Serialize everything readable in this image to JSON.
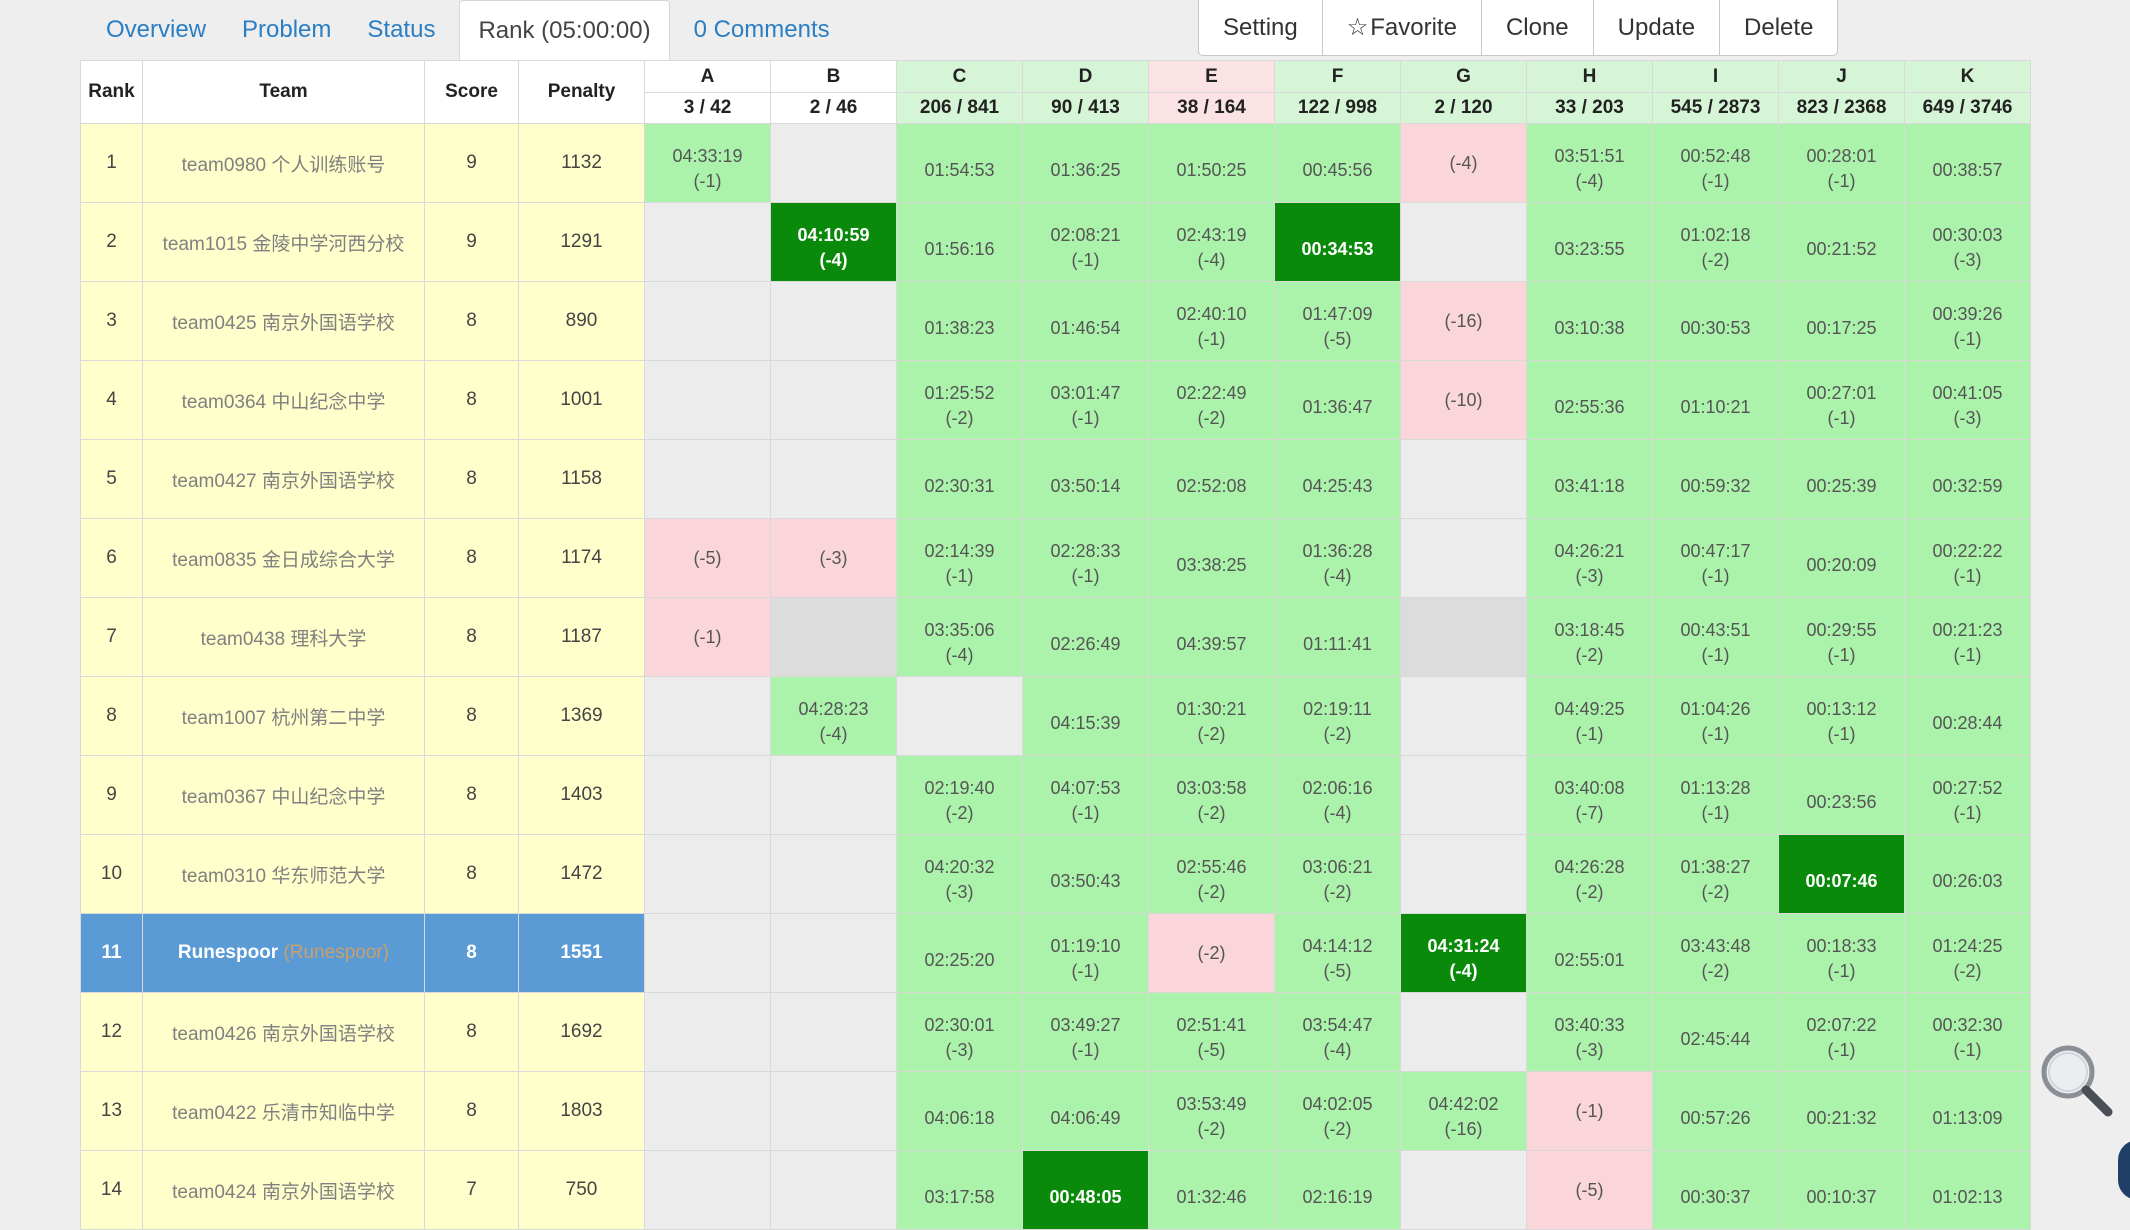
{
  "nav": {
    "overview": "Overview",
    "problem": "Problem",
    "status": "Status",
    "rank": "Rank (05:00:00)",
    "comments": "0 Comments"
  },
  "actions": {
    "setting": "Setting",
    "favorite_icon": "☆",
    "favorite": "Favorite",
    "clone": "Clone",
    "update": "Update",
    "delete": "Delete"
  },
  "table": {
    "headers": {
      "rank": "Rank",
      "team": "Team",
      "score": "Score",
      "penalty": "Penalty"
    },
    "problems": [
      {
        "label": "A",
        "stat": "3 / 42",
        "status": "none"
      },
      {
        "label": "B",
        "stat": "2 / 46",
        "status": "none"
      },
      {
        "label": "C",
        "stat": "206 / 841",
        "status": "solved"
      },
      {
        "label": "D",
        "stat": "90 / 413",
        "status": "solved"
      },
      {
        "label": "E",
        "stat": "38 / 164",
        "status": "failed"
      },
      {
        "label": "F",
        "stat": "122 / 998",
        "status": "solved"
      },
      {
        "label": "G",
        "stat": "2 / 120",
        "status": "solved"
      },
      {
        "label": "H",
        "stat": "33 / 203",
        "status": "solved"
      },
      {
        "label": "I",
        "stat": "545 / 2873",
        "status": "solved"
      },
      {
        "label": "J",
        "stat": "823 / 2368",
        "status": "solved"
      },
      {
        "label": "K",
        "stat": "649 / 3746",
        "status": "solved"
      }
    ],
    "rows": [
      {
        "rank": "1",
        "team": "team0980 个人训练账号",
        "nick": "",
        "score": "9",
        "penalty": "1132",
        "me": false,
        "cells": [
          {
            "s": "ac",
            "t": "04:33:19",
            "n": "(-1)"
          },
          {
            "s": "empty",
            "t": "",
            "n": ""
          },
          {
            "s": "ac",
            "t": "01:54:53",
            "n": ""
          },
          {
            "s": "ac",
            "t": "01:36:25",
            "n": ""
          },
          {
            "s": "ac",
            "t": "01:50:25",
            "n": ""
          },
          {
            "s": "ac",
            "t": "00:45:56",
            "n": ""
          },
          {
            "s": "wa",
            "t": "(-4)",
            "n": ""
          },
          {
            "s": "ac",
            "t": "03:51:51",
            "n": "(-4)"
          },
          {
            "s": "ac",
            "t": "00:52:48",
            "n": "(-1)"
          },
          {
            "s": "ac",
            "t": "00:28:01",
            "n": "(-1)"
          },
          {
            "s": "ac",
            "t": "00:38:57",
            "n": ""
          }
        ]
      },
      {
        "rank": "2",
        "team": "team1015 金陵中学河西分校",
        "nick": "",
        "score": "9",
        "penalty": "1291",
        "me": false,
        "cells": [
          {
            "s": "empty",
            "t": "",
            "n": ""
          },
          {
            "s": "fb",
            "t": "04:10:59",
            "n": "(-4)"
          },
          {
            "s": "ac",
            "t": "01:56:16",
            "n": ""
          },
          {
            "s": "ac",
            "t": "02:08:21",
            "n": "(-1)"
          },
          {
            "s": "ac",
            "t": "02:43:19",
            "n": "(-4)"
          },
          {
            "s": "fb",
            "t": "00:34:53",
            "n": ""
          },
          {
            "s": "empty",
            "t": "",
            "n": ""
          },
          {
            "s": "ac",
            "t": "03:23:55",
            "n": ""
          },
          {
            "s": "ac",
            "t": "01:02:18",
            "n": "(-2)"
          },
          {
            "s": "ac",
            "t": "00:21:52",
            "n": ""
          },
          {
            "s": "ac",
            "t": "00:30:03",
            "n": "(-3)"
          }
        ]
      },
      {
        "rank": "3",
        "team": "team0425 南京外国语学校",
        "nick": "",
        "score": "8",
        "penalty": "890",
        "me": false,
        "cells": [
          {
            "s": "empty",
            "t": "",
            "n": ""
          },
          {
            "s": "empty",
            "t": "",
            "n": ""
          },
          {
            "s": "ac",
            "t": "01:38:23",
            "n": ""
          },
          {
            "s": "ac",
            "t": "01:46:54",
            "n": ""
          },
          {
            "s": "ac",
            "t": "02:40:10",
            "n": "(-1)"
          },
          {
            "s": "ac",
            "t": "01:47:09",
            "n": "(-5)"
          },
          {
            "s": "wa",
            "t": "(-16)",
            "n": ""
          },
          {
            "s": "ac",
            "t": "03:10:38",
            "n": ""
          },
          {
            "s": "ac",
            "t": "00:30:53",
            "n": ""
          },
          {
            "s": "ac",
            "t": "00:17:25",
            "n": ""
          },
          {
            "s": "ac",
            "t": "00:39:26",
            "n": "(-1)"
          }
        ]
      },
      {
        "rank": "4",
        "team": "team0364 中山纪念中学",
        "nick": "",
        "score": "8",
        "penalty": "1001",
        "me": false,
        "cells": [
          {
            "s": "empty",
            "t": "",
            "n": ""
          },
          {
            "s": "empty",
            "t": "",
            "n": ""
          },
          {
            "s": "ac",
            "t": "01:25:52",
            "n": "(-2)"
          },
          {
            "s": "ac",
            "t": "03:01:47",
            "n": "(-1)"
          },
          {
            "s": "ac",
            "t": "02:22:49",
            "n": "(-2)"
          },
          {
            "s": "ac",
            "t": "01:36:47",
            "n": ""
          },
          {
            "s": "wa",
            "t": "(-10)",
            "n": ""
          },
          {
            "s": "ac",
            "t": "02:55:36",
            "n": ""
          },
          {
            "s": "ac",
            "t": "01:10:21",
            "n": ""
          },
          {
            "s": "ac",
            "t": "00:27:01",
            "n": "(-1)"
          },
          {
            "s": "ac",
            "t": "00:41:05",
            "n": "(-3)"
          }
        ]
      },
      {
        "rank": "5",
        "team": "team0427 南京外国语学校",
        "nick": "",
        "score": "8",
        "penalty": "1158",
        "me": false,
        "cells": [
          {
            "s": "empty",
            "t": "",
            "n": ""
          },
          {
            "s": "empty",
            "t": "",
            "n": ""
          },
          {
            "s": "ac",
            "t": "02:30:31",
            "n": ""
          },
          {
            "s": "ac",
            "t": "03:50:14",
            "n": ""
          },
          {
            "s": "ac",
            "t": "02:52:08",
            "n": ""
          },
          {
            "s": "ac",
            "t": "04:25:43",
            "n": ""
          },
          {
            "s": "empty",
            "t": "",
            "n": ""
          },
          {
            "s": "ac",
            "t": "03:41:18",
            "n": ""
          },
          {
            "s": "ac",
            "t": "00:59:32",
            "n": ""
          },
          {
            "s": "ac",
            "t": "00:25:39",
            "n": ""
          },
          {
            "s": "ac",
            "t": "00:32:59",
            "n": ""
          }
        ]
      },
      {
        "rank": "6",
        "team": "team0835 金日成综合大学",
        "nick": "",
        "score": "8",
        "penalty": "1174",
        "me": false,
        "cells": [
          {
            "s": "wa",
            "t": "(-5)",
            "n": ""
          },
          {
            "s": "wa",
            "t": "(-3)",
            "n": ""
          },
          {
            "s": "ac",
            "t": "02:14:39",
            "n": "(-1)"
          },
          {
            "s": "ac",
            "t": "02:28:33",
            "n": "(-1)"
          },
          {
            "s": "ac",
            "t": "03:38:25",
            "n": ""
          },
          {
            "s": "ac",
            "t": "01:36:28",
            "n": "(-4)"
          },
          {
            "s": "empty",
            "t": "",
            "n": ""
          },
          {
            "s": "ac",
            "t": "04:26:21",
            "n": "(-3)"
          },
          {
            "s": "ac",
            "t": "00:47:17",
            "n": "(-1)"
          },
          {
            "s": "ac",
            "t": "00:20:09",
            "n": ""
          },
          {
            "s": "ac",
            "t": "00:22:22",
            "n": "(-1)"
          }
        ]
      },
      {
        "rank": "7",
        "team": "team0438 理科大学",
        "nick": "",
        "score": "8",
        "penalty": "1187",
        "me": false,
        "cells": [
          {
            "s": "wa",
            "t": "(-1)",
            "n": ""
          },
          {
            "s": "pend",
            "t": "",
            "n": ""
          },
          {
            "s": "ac",
            "t": "03:35:06",
            "n": "(-4)"
          },
          {
            "s": "ac",
            "t": "02:26:49",
            "n": ""
          },
          {
            "s": "ac",
            "t": "04:39:57",
            "n": ""
          },
          {
            "s": "ac",
            "t": "01:11:41",
            "n": ""
          },
          {
            "s": "pend",
            "t": "",
            "n": ""
          },
          {
            "s": "ac",
            "t": "03:18:45",
            "n": "(-2)"
          },
          {
            "s": "ac",
            "t": "00:43:51",
            "n": "(-1)"
          },
          {
            "s": "ac",
            "t": "00:29:55",
            "n": "(-1)"
          },
          {
            "s": "ac",
            "t": "00:21:23",
            "n": "(-1)"
          }
        ]
      },
      {
        "rank": "8",
        "team": "team1007 杭州第二中学",
        "nick": "",
        "score": "8",
        "penalty": "1369",
        "me": false,
        "cells": [
          {
            "s": "empty",
            "t": "",
            "n": ""
          },
          {
            "s": "ac",
            "t": "04:28:23",
            "n": "(-4)"
          },
          {
            "s": "empty",
            "t": "",
            "n": ""
          },
          {
            "s": "ac",
            "t": "04:15:39",
            "n": ""
          },
          {
            "s": "ac",
            "t": "01:30:21",
            "n": "(-2)"
          },
          {
            "s": "ac",
            "t": "02:19:11",
            "n": "(-2)"
          },
          {
            "s": "empty",
            "t": "",
            "n": ""
          },
          {
            "s": "ac",
            "t": "04:49:25",
            "n": "(-1)"
          },
          {
            "s": "ac",
            "t": "01:04:26",
            "n": "(-1)"
          },
          {
            "s": "ac",
            "t": "00:13:12",
            "n": "(-1)"
          },
          {
            "s": "ac",
            "t": "00:28:44",
            "n": ""
          }
        ]
      },
      {
        "rank": "9",
        "team": "team0367 中山纪念中学",
        "nick": "",
        "score": "8",
        "penalty": "1403",
        "me": false,
        "cells": [
          {
            "s": "empty",
            "t": "",
            "n": ""
          },
          {
            "s": "empty",
            "t": "",
            "n": ""
          },
          {
            "s": "ac",
            "t": "02:19:40",
            "n": "(-2)"
          },
          {
            "s": "ac",
            "t": "04:07:53",
            "n": "(-1)"
          },
          {
            "s": "ac",
            "t": "03:03:58",
            "n": "(-2)"
          },
          {
            "s": "ac",
            "t": "02:06:16",
            "n": "(-4)"
          },
          {
            "s": "empty",
            "t": "",
            "n": ""
          },
          {
            "s": "ac",
            "t": "03:40:08",
            "n": "(-7)"
          },
          {
            "s": "ac",
            "t": "01:13:28",
            "n": "(-1)"
          },
          {
            "s": "ac",
            "t": "00:23:56",
            "n": ""
          },
          {
            "s": "ac",
            "t": "00:27:52",
            "n": "(-1)"
          }
        ]
      },
      {
        "rank": "10",
        "team": "team0310 华东师范大学",
        "nick": "",
        "score": "8",
        "penalty": "1472",
        "me": false,
        "cells": [
          {
            "s": "empty",
            "t": "",
            "n": ""
          },
          {
            "s": "empty",
            "t": "",
            "n": ""
          },
          {
            "s": "ac",
            "t": "04:20:32",
            "n": "(-3)"
          },
          {
            "s": "ac",
            "t": "03:50:43",
            "n": ""
          },
          {
            "s": "ac",
            "t": "02:55:46",
            "n": "(-2)"
          },
          {
            "s": "ac",
            "t": "03:06:21",
            "n": "(-2)"
          },
          {
            "s": "empty",
            "t": "",
            "n": ""
          },
          {
            "s": "ac",
            "t": "04:26:28",
            "n": "(-2)"
          },
          {
            "s": "ac",
            "t": "01:38:27",
            "n": "(-2)"
          },
          {
            "s": "fb",
            "t": "00:07:46",
            "n": ""
          },
          {
            "s": "ac",
            "t": "00:26:03",
            "n": ""
          }
        ]
      },
      {
        "rank": "11",
        "team": "Runespoor",
        "nick": "(Runespoor)",
        "score": "8",
        "penalty": "1551",
        "me": true,
        "cells": [
          {
            "s": "empty",
            "t": "",
            "n": ""
          },
          {
            "s": "empty",
            "t": "",
            "n": ""
          },
          {
            "s": "ac",
            "t": "02:25:20",
            "n": ""
          },
          {
            "s": "ac",
            "t": "01:19:10",
            "n": "(-1)"
          },
          {
            "s": "wa",
            "t": "(-2)",
            "n": ""
          },
          {
            "s": "ac",
            "t": "04:14:12",
            "n": "(-5)"
          },
          {
            "s": "fb",
            "t": "04:31:24",
            "n": "(-4)"
          },
          {
            "s": "ac",
            "t": "02:55:01",
            "n": ""
          },
          {
            "s": "ac",
            "t": "03:43:48",
            "n": "(-2)"
          },
          {
            "s": "ac",
            "t": "00:18:33",
            "n": "(-1)"
          },
          {
            "s": "ac",
            "t": "01:24:25",
            "n": "(-2)"
          }
        ]
      },
      {
        "rank": "12",
        "team": "team0426 南京外国语学校",
        "nick": "",
        "score": "8",
        "penalty": "1692",
        "me": false,
        "cells": [
          {
            "s": "empty",
            "t": "",
            "n": ""
          },
          {
            "s": "empty",
            "t": "",
            "n": ""
          },
          {
            "s": "ac",
            "t": "02:30:01",
            "n": "(-3)"
          },
          {
            "s": "ac",
            "t": "03:49:27",
            "n": "(-1)"
          },
          {
            "s": "ac",
            "t": "02:51:41",
            "n": "(-5)"
          },
          {
            "s": "ac",
            "t": "03:54:47",
            "n": "(-4)"
          },
          {
            "s": "empty",
            "t": "",
            "n": ""
          },
          {
            "s": "ac",
            "t": "03:40:33",
            "n": "(-3)"
          },
          {
            "s": "ac",
            "t": "02:45:44",
            "n": ""
          },
          {
            "s": "ac",
            "t": "02:07:22",
            "n": "(-1)"
          },
          {
            "s": "ac",
            "t": "00:32:30",
            "n": "(-1)"
          }
        ]
      },
      {
        "rank": "13",
        "team": "team0422 乐清市知临中学",
        "nick": "",
        "score": "8",
        "penalty": "1803",
        "me": false,
        "cells": [
          {
            "s": "empty",
            "t": "",
            "n": ""
          },
          {
            "s": "empty",
            "t": "",
            "n": ""
          },
          {
            "s": "ac",
            "t": "04:06:18",
            "n": ""
          },
          {
            "s": "ac",
            "t": "04:06:49",
            "n": ""
          },
          {
            "s": "ac",
            "t": "03:53:49",
            "n": "(-2)"
          },
          {
            "s": "ac",
            "t": "04:02:05",
            "n": "(-2)"
          },
          {
            "s": "ac",
            "t": "04:42:02",
            "n": "(-16)"
          },
          {
            "s": "wa",
            "t": "(-1)",
            "n": ""
          },
          {
            "s": "ac",
            "t": "00:57:26",
            "n": ""
          },
          {
            "s": "ac",
            "t": "00:21:32",
            "n": ""
          },
          {
            "s": "ac",
            "t": "01:13:09",
            "n": ""
          }
        ]
      },
      {
        "rank": "14",
        "team": "team0424 南京外国语学校",
        "nick": "",
        "score": "7",
        "penalty": "750",
        "me": false,
        "cells": [
          {
            "s": "empty",
            "t": "",
            "n": ""
          },
          {
            "s": "empty",
            "t": "",
            "n": ""
          },
          {
            "s": "ac",
            "t": "03:17:58",
            "n": ""
          },
          {
            "s": "fb",
            "t": "00:48:05",
            "n": ""
          },
          {
            "s": "ac",
            "t": "01:32:46",
            "n": ""
          },
          {
            "s": "ac",
            "t": "02:16:19",
            "n": ""
          },
          {
            "s": "empty",
            "t": "",
            "n": ""
          },
          {
            "s": "wa",
            "t": "(-5)",
            "n": ""
          },
          {
            "s": "ac",
            "t": "00:30:37",
            "n": ""
          },
          {
            "s": "ac",
            "t": "00:10:37",
            "n": ""
          },
          {
            "s": "ac",
            "t": "01:02:13",
            "n": ""
          }
        ]
      }
    ]
  }
}
